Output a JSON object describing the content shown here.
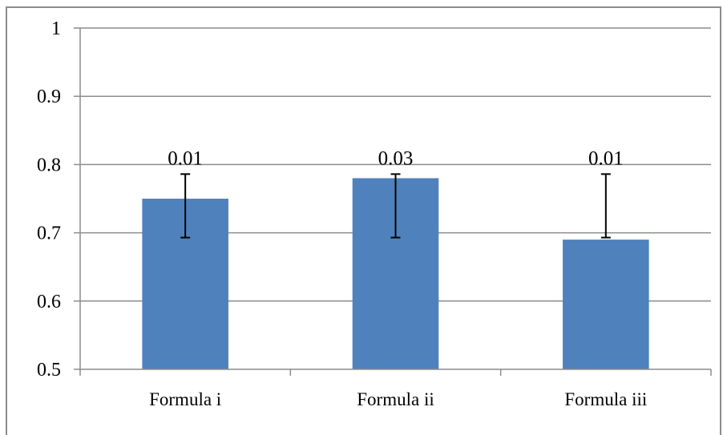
{
  "chart_data": {
    "type": "bar",
    "categories": [
      "Formula i",
      "Formula ii",
      "Formula iii"
    ],
    "values": [
      0.75,
      0.78,
      0.69
    ],
    "data_labels": [
      "0.01",
      "0.03",
      "0.01"
    ],
    "error_bars": [
      {
        "low": 0.693,
        "high": 0.786
      },
      {
        "low": 0.693,
        "high": 0.786
      },
      {
        "low": 0.693,
        "high": 0.786
      }
    ],
    "ylim": [
      0.5,
      1
    ],
    "yticks": [
      "0.5",
      "0.6",
      "0.7",
      "0.8",
      "0.9",
      "1"
    ],
    "grid": true,
    "legend": "none",
    "title": "",
    "xlabel": "",
    "ylabel": ""
  },
  "colors": {
    "bar": "#4f81bd",
    "grid": "#8c8c8c",
    "axis": "#8c8c8c",
    "error_bar": "#000000"
  }
}
